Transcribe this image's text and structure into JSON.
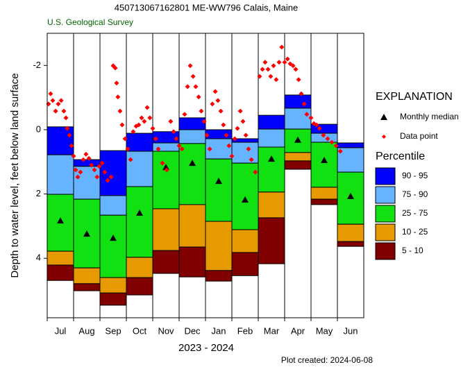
{
  "chart_data": {
    "type": "percentile",
    "title": "450713067162801 ME-WW796 Calais, Maine",
    "subtitle": "U.S. Geological Survey",
    "y_label": "Depth to water level, feet below land surface",
    "x_label": "2023 - 2024",
    "caption": "Plot created: 2024-06-08",
    "categories": [
      "Jul",
      "Aug",
      "Sep",
      "Oct",
      "Nov",
      "Dec",
      "Jan",
      "Feb",
      "Mar",
      "Apr",
      "May",
      "Jun"
    ],
    "ylim": [
      -3,
      5.85
    ],
    "y_inverted": true,
    "yticks": [
      -2,
      0,
      2,
      4
    ],
    "xlim": [
      0,
      12
    ],
    "legend_title": "EXPLANATION",
    "percentile_title": "Percentile",
    "bands": [
      {
        "name": "90 - 95",
        "color": "#0000ff"
      },
      {
        "name": "75 - 90",
        "color": "#66b3ff"
      },
      {
        "name": "25 - 75",
        "color": "#11e011"
      },
      {
        "name": "10 - 25",
        "color": "#e69a00"
      },
      {
        "name": "5 - 10",
        "color": "#800000"
      }
    ],
    "percentile_values": [
      [
        -0.09,
        0.78,
        2.01,
        3.78,
        4.21,
        4.69
      ],
      [
        0.93,
        1.14,
        2.16,
        4.3,
        4.79,
        5.01
      ],
      [
        0.65,
        2.05,
        2.66,
        4.6,
        5.08,
        5.46
      ],
      [
        0.11,
        0.67,
        1.77,
        3.97,
        4.6,
        5.14
      ],
      [
        0.06,
        0.41,
        0.67,
        2.46,
        3.76,
        4.47
      ],
      [
        -0.37,
        0.0,
        0.43,
        2.33,
        3.65,
        4.58
      ],
      [
        0.0,
        0.28,
        0.91,
        2.85,
        4.38,
        4.71
      ],
      [
        0.28,
        0.39,
        1.04,
        3.11,
        3.82,
        4.54
      ],
      [
        -0.45,
        -0.02,
        0.54,
        1.94,
        2.74,
        4.17
      ],
      [
        -1.08,
        -0.67,
        -0.02,
        0.71,
        0.97,
        1.23
      ],
      [
        -0.17,
        0.11,
        0.39,
        1.79,
        2.16,
        2.33
      ],
      [
        0.41,
        0.56,
        1.32,
        2.94,
        3.48,
        3.63
      ]
    ],
    "median": {
      "name": "Monthly median",
      "color": "#000000",
      "values": [
        2.83,
        3.24,
        3.37,
        2.59,
        1.17,
        1.04,
        1.6,
        2.18,
        0.91,
        0.32,
        0.95,
        2.07
      ]
    },
    "points": {
      "name": "Data point",
      "color": "#ff0000",
      "x": [
        0.05,
        0.13,
        0.21,
        0.32,
        0.42,
        0.53,
        0.63,
        0.71,
        0.76,
        0.84,
        0.92,
        1.0,
        1.08,
        1.16,
        1.26,
        1.37,
        1.47,
        1.58,
        1.68,
        1.79,
        1.89,
        1.97,
        2.08,
        2.18,
        2.29,
        2.42,
        2.5,
        2.58,
        2.63,
        2.68,
        2.76,
        2.84,
        2.95,
        3.05,
        3.16,
        3.26,
        3.37,
        3.47,
        3.58,
        3.68,
        3.79,
        3.89,
        4.0,
        4.11,
        4.21,
        4.37,
        4.53,
        4.68,
        4.79,
        4.89,
        5.0,
        5.11,
        5.21,
        5.32,
        5.42,
        5.53,
        5.63,
        5.74,
        5.84,
        5.95,
        6.05,
        6.16,
        6.26,
        6.37,
        6.47,
        6.58,
        6.68,
        6.79,
        6.89,
        7.0,
        7.11,
        7.21,
        7.32,
        7.42,
        7.53,
        7.63,
        7.74,
        7.89,
        8.05,
        8.16,
        8.26,
        8.37,
        8.47,
        8.58,
        8.68,
        8.79,
        8.89,
        9.0,
        9.11,
        9.21,
        9.32,
        9.42,
        9.53,
        9.63,
        9.74,
        9.84,
        10.0,
        10.11,
        10.21,
        10.32,
        10.47,
        10.63,
        10.79,
        10.95,
        11.11
      ],
      "values": [
        -0.8,
        -1.12,
        -0.91,
        -0.58,
        -0.8,
        -0.91,
        -0.58,
        -0.37,
        -0.04,
        0.17,
        0.5,
        0.82,
        1.25,
        1.47,
        1.32,
        0.93,
        0.76,
        0.89,
        1.1,
        1.25,
        1.47,
        1.14,
        1.04,
        1.32,
        1.58,
        1.47,
        -1.99,
        -1.92,
        -1.45,
        -1.02,
        -0.58,
        -0.15,
        0.28,
        0.6,
        0.93,
        0.06,
        -0.11,
        -0.15,
        -0.37,
        -0.26,
        -0.69,
        -0.37,
        -0.04,
        0.28,
        0.6,
        1.04,
        1.25,
        -0.26,
        0.06,
        0.28,
        0.5,
        0.6,
        -0.48,
        -1.34,
        -1.99,
        -1.66,
        -1.34,
        -1.02,
        -0.58,
        -0.26,
        0.17,
        0.6,
        -0.8,
        -1.19,
        -0.91,
        -0.58,
        -0.15,
        0.17,
        0.5,
        0.82,
        0.28,
        -0.04,
        -0.58,
        -0.26,
        0.17,
        0.6,
        0.93,
        1.32,
        -1.66,
        -1.88,
        -2.1,
        -1.88,
        -1.66,
        -1.99,
        -1.56,
        -2.1,
        -2.57,
        -2.1,
        -2.2,
        -2.05,
        -1.99,
        -1.88,
        -1.56,
        -1.12,
        -0.8,
        -0.48,
        -0.37,
        -0.19,
        -0.15,
        -0.04,
        0.17,
        0.28,
        0.39,
        0.5,
        0.67
      ]
    }
  }
}
